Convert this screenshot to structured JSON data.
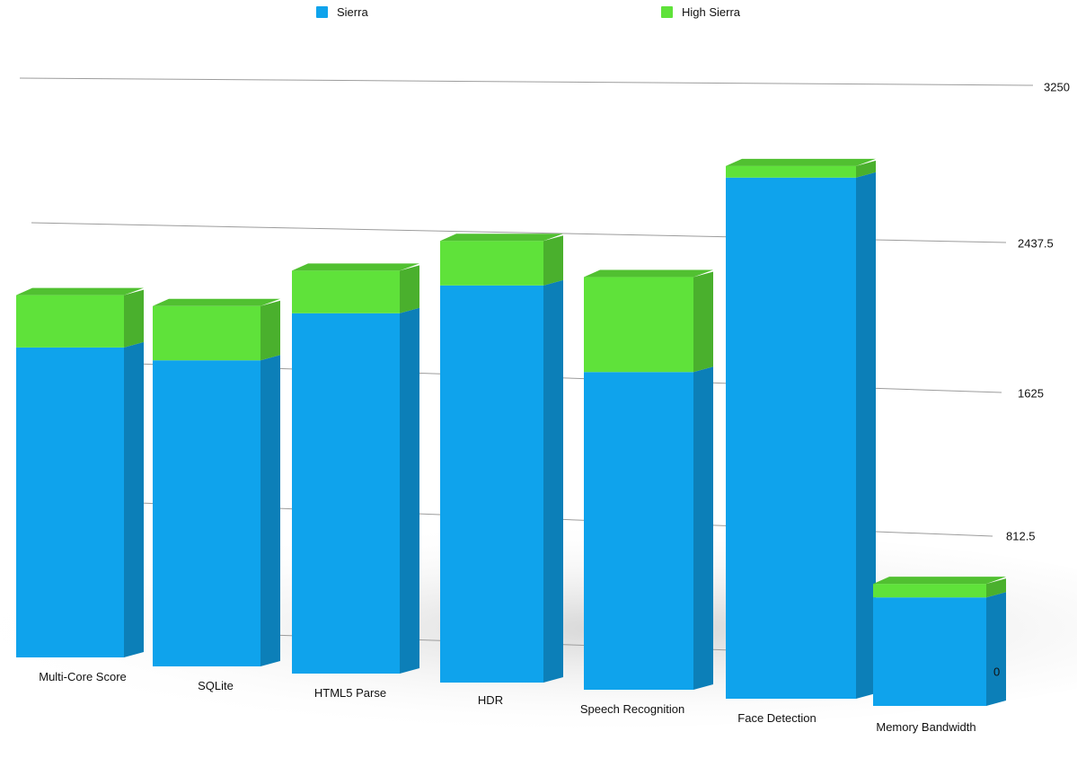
{
  "chart_data": {
    "type": "bar",
    "stacked": true,
    "style": "3d-perspective",
    "categories": [
      "Multi-Core Score",
      "SQLite",
      "HTML5 Parse",
      "HDR",
      "Speech Recognition",
      "Face Detection",
      "Memory Bandwidth"
    ],
    "series": [
      {
        "name": "Sierra",
        "color": "#0fa3ec",
        "values": [
          1600,
          1580,
          1860,
          2050,
          1640,
          2690,
          560
        ]
      },
      {
        "name": "High Sierra",
        "color": "#5fe23a",
        "values": [
          270,
          280,
          220,
          230,
          490,
          60,
          70
        ]
      }
    ],
    "y_ticks": [
      "3250",
      "2437.5",
      "1625",
      "812.5",
      "0"
    ],
    "ylim": [
      0,
      3250
    ],
    "grid": true,
    "legend_position": "top",
    "xlabel": "",
    "ylabel": "",
    "title": ""
  }
}
